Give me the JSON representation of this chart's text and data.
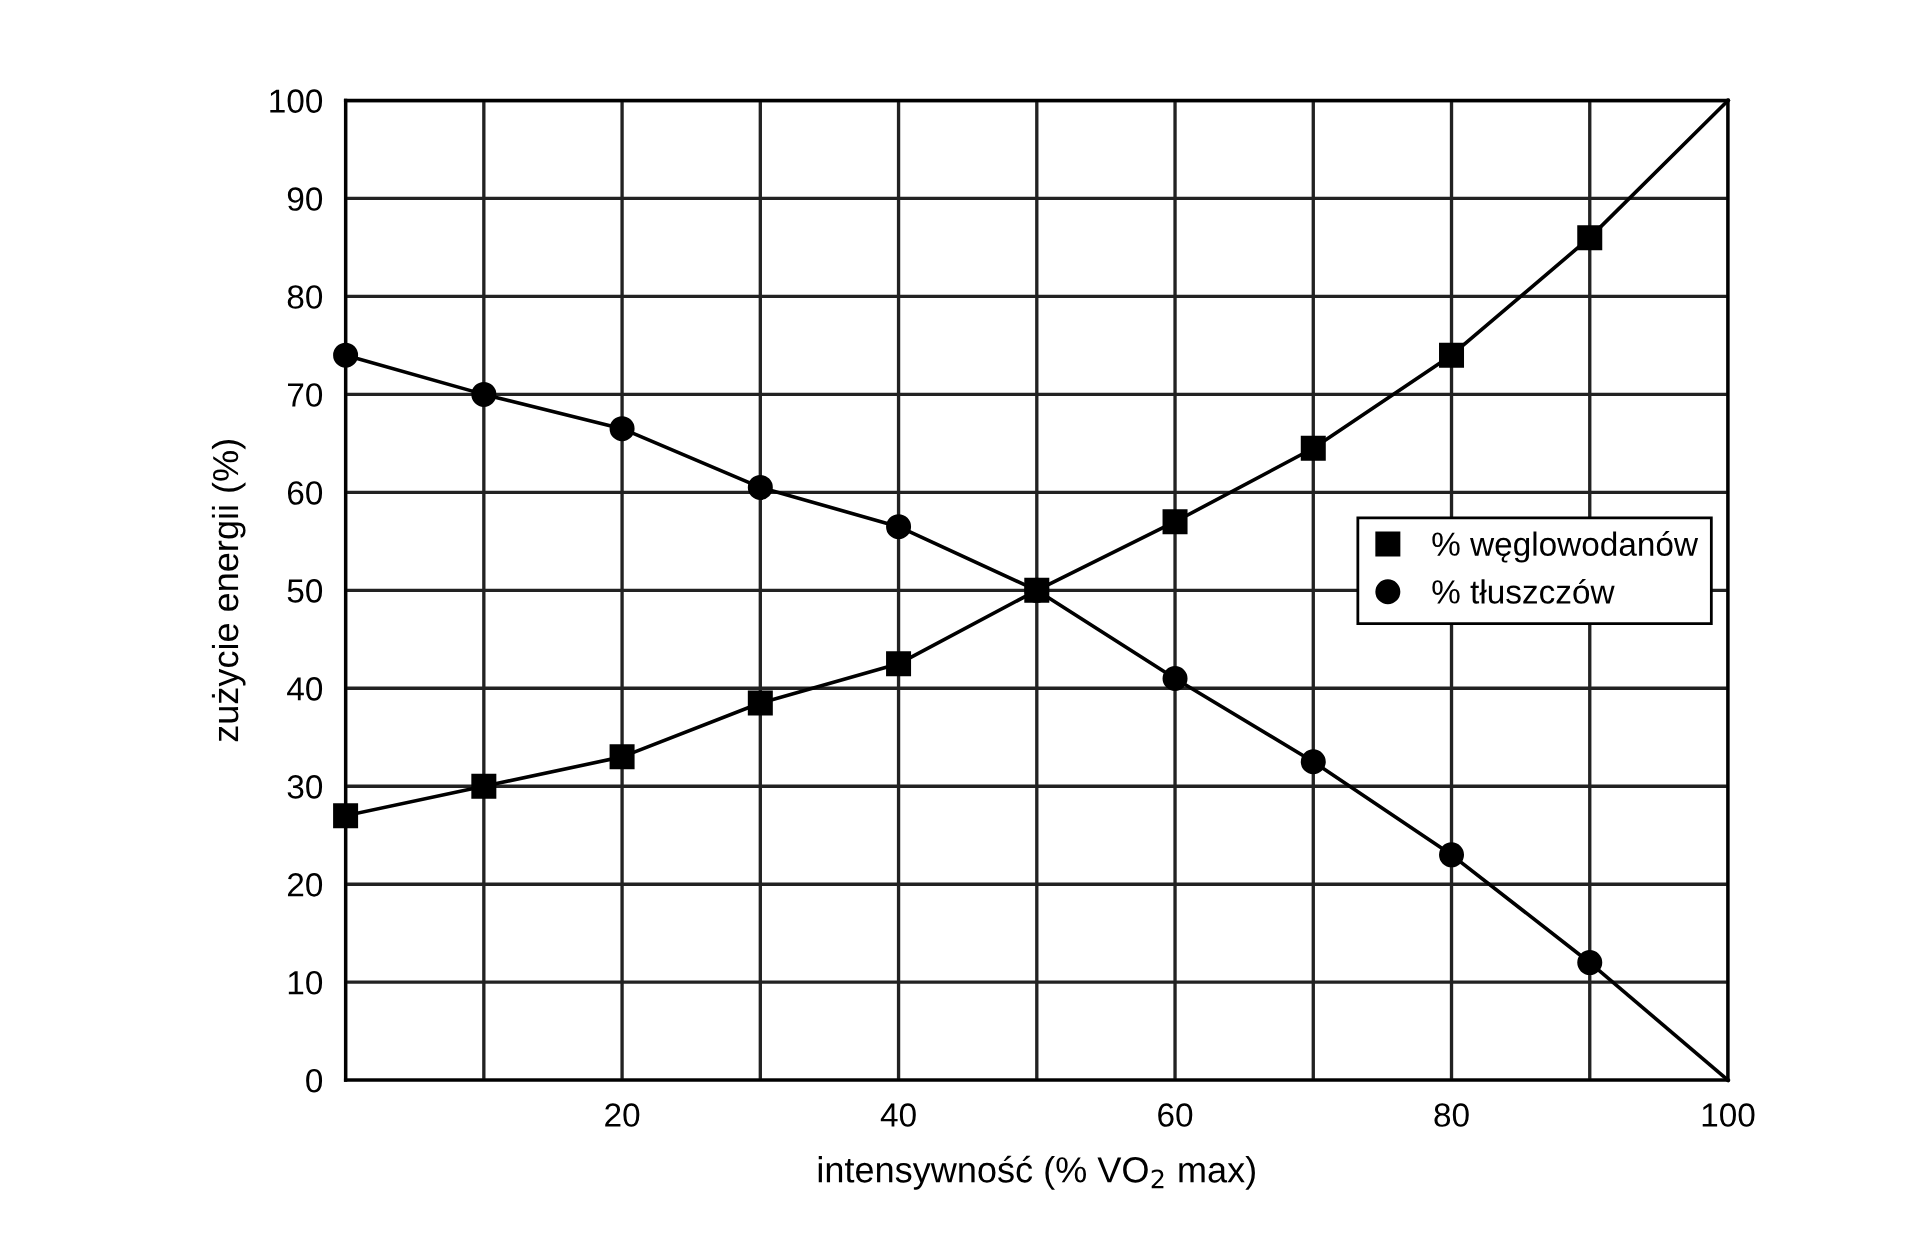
{
  "chart_data": {
    "type": "line",
    "xlabel": "intensywność (% VO$_{2}$ max)",
    "ylabel": "zużycie energii (%)",
    "xlim": [
      0,
      100
    ],
    "ylim": [
      0,
      100
    ],
    "xticks": [
      {
        "value": 0,
        "label": null
      },
      {
        "value": 10,
        "label": null
      },
      20,
      {
        "value": 30,
        "label": null
      },
      40,
      {
        "value": 50,
        "label": null
      },
      60,
      {
        "value": 70,
        "label": null
      },
      80,
      {
        "value": 90,
        "label": null
      },
      100
    ],
    "yticks": [
      0,
      10,
      20,
      30,
      40,
      50,
      60,
      70,
      80,
      90,
      100
    ],
    "grid": true,
    "legend": "right",
    "line_style": "solid",
    "series": [
      {
        "name": "% węglowodanów",
        "color": "#000000",
        "marker": "square",
        "x": [
          0,
          10,
          20,
          30,
          40,
          50,
          60,
          70,
          80,
          90
        ],
        "values": [
          27,
          30,
          33,
          38.5,
          42.5,
          50,
          57,
          64.5,
          74,
          86
        ]
      },
      {
        "name": "% tłuszczów",
        "color": "#000000",
        "marker": "circle",
        "x": [
          0,
          10,
          20,
          30,
          40,
          50,
          60,
          70,
          80,
          90
        ],
        "values": [
          74,
          70,
          66.5,
          60.5,
          56.5,
          50,
          41,
          32.5,
          23,
          12
        ]
      },
      {
        "color": "#000000",
        "marker": "none",
        "x": [
          90,
          100
        ],
        "values": [
          86,
          100
        ]
      },
      {
        "color": "#000000",
        "marker": "none",
        "x": [
          90,
          100
        ],
        "values": [
          12,
          0
        ]
      }
    ]
  }
}
